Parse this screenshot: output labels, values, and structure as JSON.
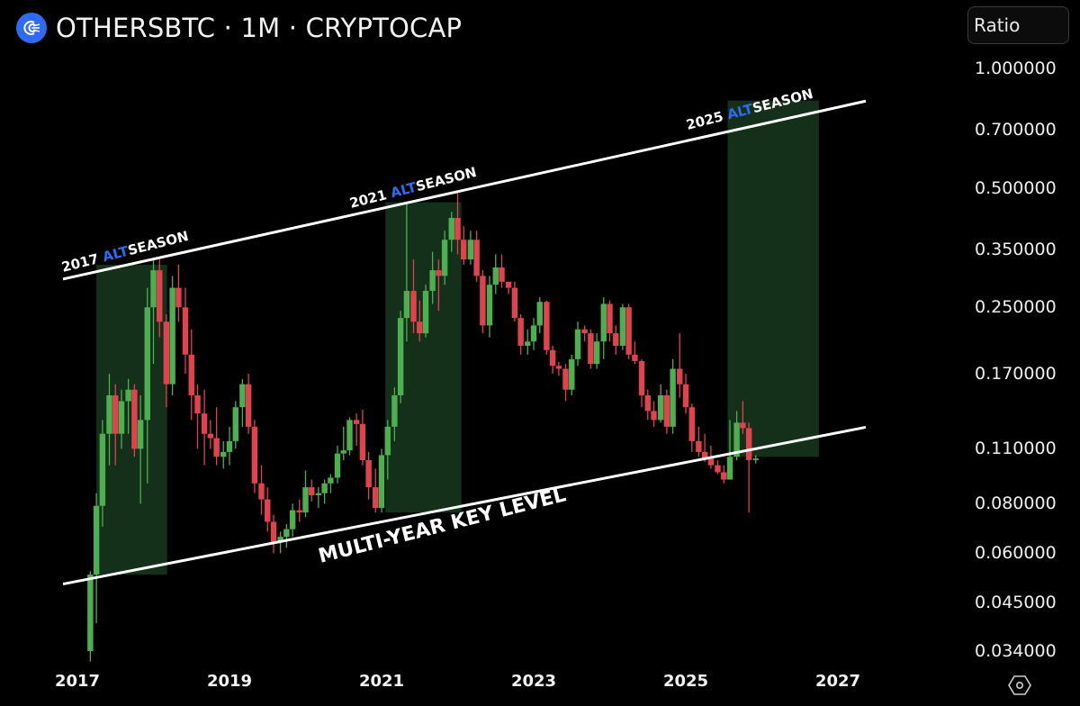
{
  "header": {
    "symbol": "OTHERSBTC",
    "title": "OTHERSBTC · 1M · CRYPTOCAP",
    "interval": "1M",
    "exchange": "CRYPTOCAP",
    "logo_icon": "cryptocap-logo-icon",
    "logo_color": "#2f6bf0"
  },
  "scale_button": {
    "label": "Ratio"
  },
  "settings_icon": "hexagon-settings-icon",
  "colors": {
    "background": "#000000",
    "up": "#4caf50",
    "down": "#e0434e",
    "highlight": "#14301a",
    "trendline": "#ffffff",
    "alt_accent": "#2f6bf0"
  },
  "chart_data": {
    "type": "candlestick",
    "title": "OTHERSBTC · 1M · CRYPTOCAP",
    "y_scale": "log",
    "ylim": [
      0.031,
      1.05
    ],
    "y_ticks": [
      "1.000000",
      "0.700000",
      "0.500000",
      "0.350000",
      "0.250000",
      "0.170000",
      "0.110000",
      "0.080000",
      "0.060000",
      "0.045000",
      "0.034000"
    ],
    "x_ticks": [
      "2017",
      "2019",
      "2021",
      "2023",
      "2025",
      "2027"
    ],
    "xlim": [
      2016.8,
      2027.4
    ],
    "annotations": [
      {
        "type": "label",
        "text": "2017 ALTSEASON",
        "highlight": "ALT"
      },
      {
        "type": "label",
        "text": "2021 ALTSEASON",
        "highlight": "ALT"
      },
      {
        "type": "label",
        "text": "2025 ALTSEASON",
        "highlight": "ALT"
      },
      {
        "type": "label",
        "text": "MULTI-YEAR KEY LEVEL"
      },
      {
        "type": "trendline",
        "name": "upper-channel",
        "from": [
          2017.0,
          0.3
        ],
        "to": [
          2027.4,
          0.83
        ]
      },
      {
        "type": "trendline",
        "name": "lower-channel",
        "from": [
          2017.0,
          0.051
        ],
        "to": [
          2027.4,
          0.125
        ]
      },
      {
        "type": "zone",
        "name": "2017-altseason",
        "x": [
          2017.25,
          2018.18
        ],
        "y": [
          0.053,
          0.32
        ]
      },
      {
        "type": "zone",
        "name": "2021-altseason",
        "x": [
          2021.05,
          2022.05
        ],
        "y": [
          0.076,
          0.46
        ]
      },
      {
        "type": "zone",
        "name": "2025-altseason",
        "x": [
          2025.55,
          2026.75
        ],
        "y": [
          0.105,
          0.83
        ]
      }
    ],
    "candles": [
      {
        "t": 2017.17,
        "o": 0.034,
        "h": 0.054,
        "l": 0.032,
        "c": 0.053
      },
      {
        "t": 2017.25,
        "o": 0.053,
        "h": 0.085,
        "l": 0.04,
        "c": 0.079
      },
      {
        "t": 2017.33,
        "o": 0.079,
        "h": 0.13,
        "l": 0.07,
        "c": 0.12
      },
      {
        "t": 2017.42,
        "o": 0.12,
        "h": 0.17,
        "l": 0.1,
        "c": 0.15
      },
      {
        "t": 2017.5,
        "o": 0.15,
        "h": 0.16,
        "l": 0.1,
        "c": 0.12
      },
      {
        "t": 2017.58,
        "o": 0.12,
        "h": 0.155,
        "l": 0.11,
        "c": 0.145
      },
      {
        "t": 2017.67,
        "o": 0.145,
        "h": 0.165,
        "l": 0.12,
        "c": 0.155
      },
      {
        "t": 2017.75,
        "o": 0.155,
        "h": 0.16,
        "l": 0.105,
        "c": 0.11
      },
      {
        "t": 2017.83,
        "o": 0.11,
        "h": 0.15,
        "l": 0.08,
        "c": 0.13
      },
      {
        "t": 2017.92,
        "o": 0.13,
        "h": 0.28,
        "l": 0.09,
        "c": 0.25
      },
      {
        "t": 2018.0,
        "o": 0.25,
        "h": 0.33,
        "l": 0.18,
        "c": 0.31
      },
      {
        "t": 2018.08,
        "o": 0.31,
        "h": 0.33,
        "l": 0.21,
        "c": 0.23
      },
      {
        "t": 2018.17,
        "o": 0.23,
        "h": 0.24,
        "l": 0.14,
        "c": 0.16
      },
      {
        "t": 2018.25,
        "o": 0.16,
        "h": 0.3,
        "l": 0.15,
        "c": 0.28
      },
      {
        "t": 2018.33,
        "o": 0.28,
        "h": 0.32,
        "l": 0.23,
        "c": 0.25
      },
      {
        "t": 2018.42,
        "o": 0.25,
        "h": 0.28,
        "l": 0.17,
        "c": 0.19
      },
      {
        "t": 2018.5,
        "o": 0.19,
        "h": 0.22,
        "l": 0.13,
        "c": 0.15
      },
      {
        "t": 2018.58,
        "o": 0.15,
        "h": 0.16,
        "l": 0.11,
        "c": 0.135
      },
      {
        "t": 2018.67,
        "o": 0.135,
        "h": 0.155,
        "l": 0.1,
        "c": 0.12
      },
      {
        "t": 2018.75,
        "o": 0.12,
        "h": 0.13,
        "l": 0.11,
        "c": 0.117
      },
      {
        "t": 2018.83,
        "o": 0.117,
        "h": 0.14,
        "l": 0.1,
        "c": 0.105
      },
      {
        "t": 2018.92,
        "o": 0.105,
        "h": 0.115,
        "l": 0.098,
        "c": 0.108
      },
      {
        "t": 2019.0,
        "o": 0.108,
        "h": 0.125,
        "l": 0.1,
        "c": 0.115
      },
      {
        "t": 2019.08,
        "o": 0.115,
        "h": 0.145,
        "l": 0.11,
        "c": 0.14
      },
      {
        "t": 2019.17,
        "o": 0.14,
        "h": 0.165,
        "l": 0.125,
        "c": 0.16
      },
      {
        "t": 2019.25,
        "o": 0.16,
        "h": 0.17,
        "l": 0.12,
        "c": 0.125
      },
      {
        "t": 2019.33,
        "o": 0.125,
        "h": 0.13,
        "l": 0.085,
        "c": 0.09
      },
      {
        "t": 2019.42,
        "o": 0.09,
        "h": 0.1,
        "l": 0.075,
        "c": 0.082
      },
      {
        "t": 2019.5,
        "o": 0.082,
        "h": 0.088,
        "l": 0.068,
        "c": 0.072
      },
      {
        "t": 2019.58,
        "o": 0.072,
        "h": 0.075,
        "l": 0.06,
        "c": 0.064
      },
      {
        "t": 2019.67,
        "o": 0.064,
        "h": 0.068,
        "l": 0.06,
        "c": 0.066
      },
      {
        "t": 2019.75,
        "o": 0.066,
        "h": 0.071,
        "l": 0.062,
        "c": 0.069
      },
      {
        "t": 2019.83,
        "o": 0.069,
        "h": 0.08,
        "l": 0.066,
        "c": 0.077
      },
      {
        "t": 2019.92,
        "o": 0.077,
        "h": 0.082,
        "l": 0.072,
        "c": 0.076
      },
      {
        "t": 2020.0,
        "o": 0.076,
        "h": 0.097,
        "l": 0.074,
        "c": 0.088
      },
      {
        "t": 2020.08,
        "o": 0.088,
        "h": 0.092,
        "l": 0.081,
        "c": 0.084
      },
      {
        "t": 2020.17,
        "o": 0.084,
        "h": 0.088,
        "l": 0.078,
        "c": 0.085
      },
      {
        "t": 2020.25,
        "o": 0.085,
        "h": 0.092,
        "l": 0.08,
        "c": 0.09
      },
      {
        "t": 2020.33,
        "o": 0.09,
        "h": 0.095,
        "l": 0.085,
        "c": 0.093
      },
      {
        "t": 2020.42,
        "o": 0.093,
        "h": 0.112,
        "l": 0.09,
        "c": 0.107
      },
      {
        "t": 2020.5,
        "o": 0.107,
        "h": 0.125,
        "l": 0.103,
        "c": 0.109
      },
      {
        "t": 2020.58,
        "o": 0.109,
        "h": 0.132,
        "l": 0.106,
        "c": 0.13
      },
      {
        "t": 2020.67,
        "o": 0.13,
        "h": 0.135,
        "l": 0.112,
        "c": 0.127
      },
      {
        "t": 2020.75,
        "o": 0.127,
        "h": 0.138,
        "l": 0.1,
        "c": 0.103
      },
      {
        "t": 2020.83,
        "o": 0.103,
        "h": 0.108,
        "l": 0.082,
        "c": 0.088
      },
      {
        "t": 2020.92,
        "o": 0.088,
        "h": 0.098,
        "l": 0.076,
        "c": 0.078
      },
      {
        "t": 2021.0,
        "o": 0.078,
        "h": 0.11,
        "l": 0.076,
        "c": 0.106
      },
      {
        "t": 2021.08,
        "o": 0.106,
        "h": 0.13,
        "l": 0.092,
        "c": 0.125
      },
      {
        "t": 2021.17,
        "o": 0.125,
        "h": 0.157,
        "l": 0.115,
        "c": 0.15
      },
      {
        "t": 2021.25,
        "o": 0.15,
        "h": 0.245,
        "l": 0.143,
        "c": 0.235
      },
      {
        "t": 2021.33,
        "o": 0.235,
        "h": 0.46,
        "l": 0.205,
        "c": 0.275
      },
      {
        "t": 2021.42,
        "o": 0.275,
        "h": 0.33,
        "l": 0.215,
        "c": 0.23
      },
      {
        "t": 2021.5,
        "o": 0.23,
        "h": 0.26,
        "l": 0.205,
        "c": 0.215
      },
      {
        "t": 2021.58,
        "o": 0.215,
        "h": 0.285,
        "l": 0.21,
        "c": 0.275
      },
      {
        "t": 2021.67,
        "o": 0.275,
        "h": 0.345,
        "l": 0.255,
        "c": 0.31
      },
      {
        "t": 2021.75,
        "o": 0.31,
        "h": 0.33,
        "l": 0.245,
        "c": 0.3
      },
      {
        "t": 2021.83,
        "o": 0.3,
        "h": 0.39,
        "l": 0.285,
        "c": 0.37
      },
      {
        "t": 2021.92,
        "o": 0.37,
        "h": 0.435,
        "l": 0.345,
        "c": 0.42
      },
      {
        "t": 2022.0,
        "o": 0.42,
        "h": 0.49,
        "l": 0.34,
        "c": 0.37
      },
      {
        "t": 2022.08,
        "o": 0.37,
        "h": 0.4,
        "l": 0.32,
        "c": 0.33
      },
      {
        "t": 2022.17,
        "o": 0.33,
        "h": 0.39,
        "l": 0.32,
        "c": 0.37
      },
      {
        "t": 2022.25,
        "o": 0.37,
        "h": 0.39,
        "l": 0.29,
        "c": 0.3
      },
      {
        "t": 2022.33,
        "o": 0.3,
        "h": 0.31,
        "l": 0.215,
        "c": 0.225
      },
      {
        "t": 2022.42,
        "o": 0.225,
        "h": 0.3,
        "l": 0.21,
        "c": 0.285
      },
      {
        "t": 2022.5,
        "o": 0.285,
        "h": 0.34,
        "l": 0.27,
        "c": 0.315
      },
      {
        "t": 2022.58,
        "o": 0.315,
        "h": 0.34,
        "l": 0.28,
        "c": 0.29
      },
      {
        "t": 2022.67,
        "o": 0.29,
        "h": 0.29,
        "l": 0.27,
        "c": 0.28
      },
      {
        "t": 2022.75,
        "o": 0.28,
        "h": 0.29,
        "l": 0.23,
        "c": 0.235
      },
      {
        "t": 2022.83,
        "o": 0.235,
        "h": 0.24,
        "l": 0.19,
        "c": 0.2
      },
      {
        "t": 2022.92,
        "o": 0.2,
        "h": 0.22,
        "l": 0.19,
        "c": 0.205
      },
      {
        "t": 2023.0,
        "o": 0.205,
        "h": 0.235,
        "l": 0.195,
        "c": 0.225
      },
      {
        "t": 2023.08,
        "o": 0.225,
        "h": 0.265,
        "l": 0.215,
        "c": 0.258
      },
      {
        "t": 2023.17,
        "o": 0.258,
        "h": 0.26,
        "l": 0.19,
        "c": 0.195
      },
      {
        "t": 2023.25,
        "o": 0.195,
        "h": 0.2,
        "l": 0.17,
        "c": 0.178
      },
      {
        "t": 2023.33,
        "o": 0.178,
        "h": 0.182,
        "l": 0.168,
        "c": 0.175
      },
      {
        "t": 2023.42,
        "o": 0.175,
        "h": 0.18,
        "l": 0.145,
        "c": 0.155
      },
      {
        "t": 2023.5,
        "o": 0.155,
        "h": 0.19,
        "l": 0.15,
        "c": 0.185
      },
      {
        "t": 2023.58,
        "o": 0.185,
        "h": 0.23,
        "l": 0.178,
        "c": 0.22
      },
      {
        "t": 2023.67,
        "o": 0.22,
        "h": 0.225,
        "l": 0.205,
        "c": 0.215
      },
      {
        "t": 2023.75,
        "o": 0.215,
        "h": 0.22,
        "l": 0.175,
        "c": 0.18
      },
      {
        "t": 2023.83,
        "o": 0.18,
        "h": 0.215,
        "l": 0.175,
        "c": 0.205
      },
      {
        "t": 2023.92,
        "o": 0.205,
        "h": 0.265,
        "l": 0.185,
        "c": 0.255
      },
      {
        "t": 2024.0,
        "o": 0.255,
        "h": 0.26,
        "l": 0.205,
        "c": 0.215
      },
      {
        "t": 2024.08,
        "o": 0.215,
        "h": 0.225,
        "l": 0.19,
        "c": 0.2
      },
      {
        "t": 2024.17,
        "o": 0.2,
        "h": 0.255,
        "l": 0.195,
        "c": 0.25
      },
      {
        "t": 2024.25,
        "o": 0.25,
        "h": 0.255,
        "l": 0.185,
        "c": 0.19
      },
      {
        "t": 2024.33,
        "o": 0.19,
        "h": 0.205,
        "l": 0.18,
        "c": 0.183
      },
      {
        "t": 2024.42,
        "o": 0.183,
        "h": 0.185,
        "l": 0.14,
        "c": 0.15
      },
      {
        "t": 2024.5,
        "o": 0.15,
        "h": 0.155,
        "l": 0.13,
        "c": 0.137
      },
      {
        "t": 2024.58,
        "o": 0.137,
        "h": 0.145,
        "l": 0.125,
        "c": 0.13
      },
      {
        "t": 2024.67,
        "o": 0.13,
        "h": 0.16,
        "l": 0.128,
        "c": 0.15
      },
      {
        "t": 2024.75,
        "o": 0.15,
        "h": 0.155,
        "l": 0.12,
        "c": 0.125
      },
      {
        "t": 2024.83,
        "o": 0.125,
        "h": 0.185,
        "l": 0.12,
        "c": 0.175
      },
      {
        "t": 2024.92,
        "o": 0.175,
        "h": 0.215,
        "l": 0.148,
        "c": 0.16
      },
      {
        "t": 2025.0,
        "o": 0.16,
        "h": 0.17,
        "l": 0.135,
        "c": 0.14
      },
      {
        "t": 2025.08,
        "o": 0.14,
        "h": 0.143,
        "l": 0.108,
        "c": 0.115
      },
      {
        "t": 2025.17,
        "o": 0.115,
        "h": 0.125,
        "l": 0.105,
        "c": 0.108
      },
      {
        "t": 2025.25,
        "o": 0.108,
        "h": 0.12,
        "l": 0.102,
        "c": 0.104
      },
      {
        "t": 2025.33,
        "o": 0.104,
        "h": 0.112,
        "l": 0.098,
        "c": 0.1
      },
      {
        "t": 2025.42,
        "o": 0.1,
        "h": 0.103,
        "l": 0.095,
        "c": 0.096
      },
      {
        "t": 2025.5,
        "o": 0.096,
        "h": 0.1,
        "l": 0.09,
        "c": 0.092
      },
      {
        "t": 2025.58,
        "o": 0.092,
        "h": 0.13,
        "l": 0.092,
        "c": 0.105
      },
      {
        "t": 2025.67,
        "o": 0.105,
        "h": 0.137,
        "l": 0.103,
        "c": 0.128
      },
      {
        "t": 2025.75,
        "o": 0.128,
        "h": 0.145,
        "l": 0.12,
        "c": 0.124
      },
      {
        "t": 2025.83,
        "o": 0.124,
        "h": 0.128,
        "l": 0.076,
        "c": 0.103
      },
      {
        "t": 2025.92,
        "o": 0.103,
        "h": 0.106,
        "l": 0.101,
        "c": 0.104
      }
    ]
  }
}
